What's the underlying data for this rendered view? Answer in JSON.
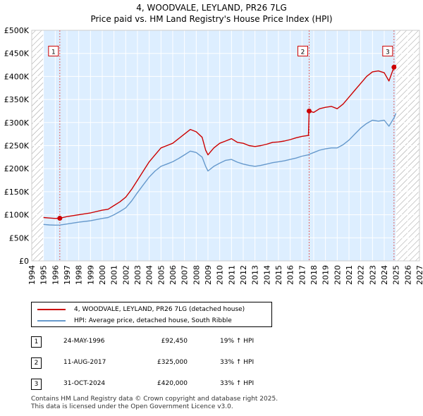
{
  "title_line1": "4, WOODVALE, LEYLAND, PR26 7LG",
  "title_line2": "Price paid vs. HM Land Registry's House Price Index (HPI)",
  "chart_data": {
    "type": "line",
    "title": "Price paid vs. HM Land Registry's House Price Index (HPI)",
    "xlabel": "",
    "ylabel": "",
    "xlim": [
      1994,
      2027
    ],
    "ylim": [
      0,
      500000
    ],
    "y_ticks": [
      0,
      50000,
      100000,
      150000,
      200000,
      250000,
      300000,
      350000,
      400000,
      450000,
      500000
    ],
    "y_tick_labels": [
      "£0",
      "£50K",
      "£100K",
      "£150K",
      "£200K",
      "£250K",
      "£300K",
      "£350K",
      "£400K",
      "£450K",
      "£500K"
    ],
    "x_ticks": [
      1994,
      1995,
      1996,
      1997,
      1998,
      1999,
      2000,
      2001,
      2002,
      2003,
      2004,
      2005,
      2006,
      2007,
      2008,
      2009,
      2010,
      2011,
      2012,
      2013,
      2014,
      2015,
      2016,
      2017,
      2018,
      2019,
      2020,
      2021,
      2022,
      2023,
      2024,
      2025,
      2026,
      2027
    ],
    "grid": true,
    "data_start": 1995.0,
    "data_end": 2025.0,
    "series": [
      {
        "name": "4, WOODVALE, LEYLAND, PR26 7LG (detached house)",
        "color": "#cc0000",
        "points": [
          [
            1995.0,
            94000
          ],
          [
            1995.5,
            93000
          ],
          [
            1996.0,
            92000
          ],
          [
            1996.39,
            92450
          ],
          [
            1997.0,
            96000
          ],
          [
            1998.0,
            100000
          ],
          [
            1999.0,
            104000
          ],
          [
            2000.0,
            110000
          ],
          [
            2000.5,
            112000
          ],
          [
            2001.0,
            120000
          ],
          [
            2001.5,
            128000
          ],
          [
            2002.0,
            138000
          ],
          [
            2002.5,
            155000
          ],
          [
            2003.0,
            175000
          ],
          [
            2003.5,
            195000
          ],
          [
            2004.0,
            215000
          ],
          [
            2004.5,
            230000
          ],
          [
            2005.0,
            245000
          ],
          [
            2005.5,
            250000
          ],
          [
            2006.0,
            255000
          ],
          [
            2006.5,
            265000
          ],
          [
            2007.0,
            275000
          ],
          [
            2007.5,
            285000
          ],
          [
            2008.0,
            280000
          ],
          [
            2008.5,
            268000
          ],
          [
            2008.8,
            240000
          ],
          [
            2009.0,
            230000
          ],
          [
            2009.5,
            245000
          ],
          [
            2010.0,
            255000
          ],
          [
            2010.5,
            260000
          ],
          [
            2011.0,
            265000
          ],
          [
            2011.5,
            257000
          ],
          [
            2012.0,
            255000
          ],
          [
            2012.5,
            250000
          ],
          [
            2013.0,
            248000
          ],
          [
            2013.5,
            250000
          ],
          [
            2014.0,
            253000
          ],
          [
            2014.5,
            257000
          ],
          [
            2015.0,
            258000
          ],
          [
            2015.5,
            260000
          ],
          [
            2016.0,
            263000
          ],
          [
            2016.5,
            267000
          ],
          [
            2017.0,
            270000
          ],
          [
            2017.55,
            272000
          ],
          [
            2017.61,
            325000
          ],
          [
            2018.0,
            322000
          ],
          [
            2018.5,
            330000
          ],
          [
            2019.0,
            333000
          ],
          [
            2019.5,
            335000
          ],
          [
            2020.0,
            330000
          ],
          [
            2020.5,
            340000
          ],
          [
            2021.0,
            355000
          ],
          [
            2021.5,
            370000
          ],
          [
            2022.0,
            385000
          ],
          [
            2022.5,
            400000
          ],
          [
            2023.0,
            410000
          ],
          [
            2023.5,
            412000
          ],
          [
            2024.0,
            408000
          ],
          [
            2024.4,
            390000
          ],
          [
            2024.83,
            420000
          ],
          [
            2025.0,
            425000
          ]
        ]
      },
      {
        "name": "HPI: Average price, detached house, South Ribble",
        "color": "#6699cc",
        "points": [
          [
            1995.0,
            79000
          ],
          [
            1995.5,
            78000
          ],
          [
            1996.0,
            77500
          ],
          [
            1996.39,
            77700
          ],
          [
            1997.0,
            80000
          ],
          [
            1998.0,
            84000
          ],
          [
            1999.0,
            87000
          ],
          [
            2000.0,
            92000
          ],
          [
            2000.5,
            94000
          ],
          [
            2001.0,
            100000
          ],
          [
            2001.5,
            107000
          ],
          [
            2002.0,
            115000
          ],
          [
            2002.5,
            130000
          ],
          [
            2003.0,
            148000
          ],
          [
            2003.5,
            165000
          ],
          [
            2004.0,
            182000
          ],
          [
            2004.5,
            195000
          ],
          [
            2005.0,
            205000
          ],
          [
            2005.5,
            210000
          ],
          [
            2006.0,
            215000
          ],
          [
            2006.5,
            222000
          ],
          [
            2007.0,
            230000
          ],
          [
            2007.5,
            238000
          ],
          [
            2008.0,
            235000
          ],
          [
            2008.5,
            225000
          ],
          [
            2008.8,
            205000
          ],
          [
            2009.0,
            195000
          ],
          [
            2009.5,
            205000
          ],
          [
            2010.0,
            212000
          ],
          [
            2010.5,
            218000
          ],
          [
            2011.0,
            220000
          ],
          [
            2011.5,
            214000
          ],
          [
            2012.0,
            210000
          ],
          [
            2012.5,
            207000
          ],
          [
            2013.0,
            205000
          ],
          [
            2013.5,
            207000
          ],
          [
            2014.0,
            210000
          ],
          [
            2014.5,
            213000
          ],
          [
            2015.0,
            215000
          ],
          [
            2015.5,
            217000
          ],
          [
            2016.0,
            220000
          ],
          [
            2016.5,
            223000
          ],
          [
            2017.0,
            227000
          ],
          [
            2017.55,
            230000
          ],
          [
            2017.61,
            231000
          ],
          [
            2018.0,
            235000
          ],
          [
            2018.5,
            240000
          ],
          [
            2019.0,
            243000
          ],
          [
            2019.5,
            245000
          ],
          [
            2020.0,
            245000
          ],
          [
            2020.5,
            252000
          ],
          [
            2021.0,
            262000
          ],
          [
            2021.5,
            275000
          ],
          [
            2022.0,
            288000
          ],
          [
            2022.5,
            298000
          ],
          [
            2023.0,
            305000
          ],
          [
            2023.5,
            303000
          ],
          [
            2024.0,
            305000
          ],
          [
            2024.4,
            292000
          ],
          [
            2024.83,
            310000
          ],
          [
            2025.0,
            320000
          ]
        ]
      }
    ],
    "markers": [
      {
        "label": "1",
        "x": 1996.39,
        "y": 92450
      },
      {
        "label": "2",
        "x": 2017.61,
        "y": 325000
      },
      {
        "label": "3",
        "x": 2024.83,
        "y": 420000
      }
    ],
    "marker_box_value": 455000
  },
  "legend": {
    "item1": "4, WOODVALE, LEYLAND, PR26 7LG (detached house)",
    "item2": "HPI: Average price, detached house, South Ribble"
  },
  "transactions": [
    {
      "num": "1",
      "date": "24-MAY-1996",
      "price": "£92,450",
      "hpi": "19% ↑ HPI"
    },
    {
      "num": "2",
      "date": "11-AUG-2017",
      "price": "£325,000",
      "hpi": "33% ↑ HPI"
    },
    {
      "num": "3",
      "date": "31-OCT-2024",
      "price": "£420,000",
      "hpi": "33% ↑ HPI"
    }
  ],
  "footer": {
    "line1": "Contains HM Land Registry data © Crown copyright and database right 2025.",
    "line2": "This data is licensed under the Open Government Licence v3.0."
  },
  "colors": {
    "price_line": "#cc0000",
    "hpi_line": "#6699cc",
    "plot_bg": "#ddeeff",
    "hatch": "#999999",
    "vline": "#e06060"
  }
}
